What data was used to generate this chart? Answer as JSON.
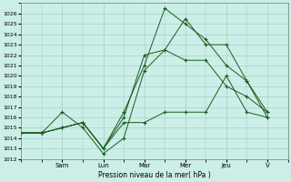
{
  "title": "Pression niveau de la mer( hPa )",
  "bg_color": "#cceee8",
  "grid_color": "#99ccbb",
  "line_color": "#1a5c1a",
  "ylim": [
    1012,
    1027
  ],
  "yticks": [
    1012,
    1013,
    1014,
    1015,
    1016,
    1017,
    1018,
    1019,
    1020,
    1021,
    1022,
    1023,
    1024,
    1025,
    1026
  ],
  "x_tick_positions": [
    2,
    4,
    6,
    8,
    10,
    12
  ],
  "x_tick_labels": [
    "Sam",
    "Lun",
    "Mar",
    "Mer",
    "Jeu",
    "V"
  ],
  "xlim": [
    0,
    13
  ],
  "series": [
    {
      "x": [
        0,
        1,
        2,
        3,
        4,
        5,
        6,
        7,
        8,
        9,
        10,
        11,
        12
      ],
      "y": [
        1014.5,
        1014.5,
        1016.5,
        1015.0,
        1012.5,
        1014.0,
        1020.5,
        1022.5,
        1021.5,
        1021.5,
        1019.0,
        1018.0,
        1016.5
      ]
    },
    {
      "x": [
        0,
        1,
        2,
        3,
        4,
        5,
        6,
        7,
        8,
        9,
        10,
        11,
        12
      ],
      "y": [
        1014.5,
        1014.5,
        1015.0,
        1015.5,
        1013.0,
        1016.0,
        1022.0,
        1022.5,
        1025.5,
        1023.0,
        1023.0,
        1019.5,
        1016.0
      ]
    },
    {
      "x": [
        0,
        1,
        2,
        3,
        4,
        5,
        6,
        7,
        8,
        9,
        10,
        11,
        12
      ],
      "y": [
        1014.5,
        1014.5,
        1015.0,
        1015.5,
        1013.0,
        1016.5,
        1021.0,
        1026.5,
        1025.0,
        1023.5,
        1021.0,
        1019.5,
        1016.5
      ]
    },
    {
      "x": [
        0,
        1,
        2,
        3,
        4,
        5,
        6,
        7,
        8,
        9,
        10,
        11,
        12
      ],
      "y": [
        1014.5,
        1014.5,
        1015.0,
        1015.5,
        1013.0,
        1015.5,
        1015.5,
        1016.5,
        1016.5,
        1016.5,
        1020.0,
        1016.5,
        1016.0
      ]
    }
  ]
}
